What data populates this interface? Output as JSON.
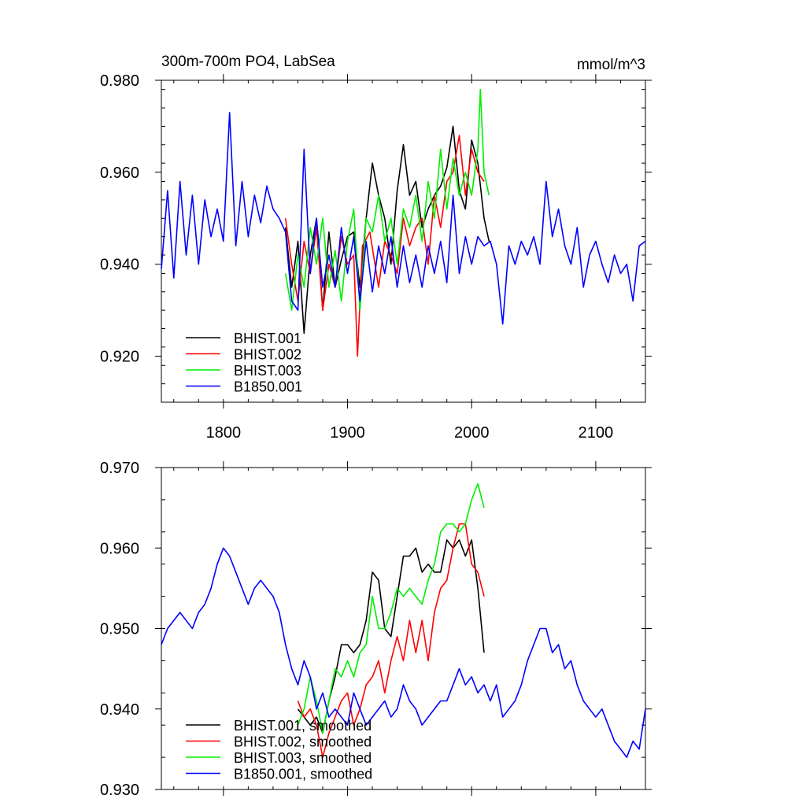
{
  "chart_data": [
    {
      "type": "line",
      "title": "300m-700m PO4, LabSea",
      "units": "mmol/m^3",
      "xlim": [
        1750,
        2140
      ],
      "ylim": [
        0.91,
        0.98
      ],
      "x_ticks": [
        1800,
        1900,
        2000,
        2100
      ],
      "x_tick_labels": [
        "1800",
        "1900",
        "2000",
        "2100"
      ],
      "y_ticks": [
        0.92,
        0.94,
        0.96,
        0.98
      ],
      "y_tick_labels": [
        "0.920",
        "0.940",
        "0.960",
        "0.980"
      ],
      "legend_position": "bottom-left",
      "series": [
        {
          "name": "BHIST.001",
          "color": "#000000",
          "x": [
            1850,
            1855,
            1860,
            1865,
            1870,
            1875,
            1880,
            1885,
            1890,
            1895,
            1900,
            1905,
            1910,
            1915,
            1920,
            1925,
            1930,
            1935,
            1940,
            1945,
            1950,
            1955,
            1960,
            1965,
            1970,
            1975,
            1980,
            1985,
            1990,
            1995,
            2000,
            2005,
            2010,
            2014
          ],
          "y": [
            0.948,
            0.935,
            0.945,
            0.925,
            0.942,
            0.95,
            0.93,
            0.947,
            0.935,
            0.941,
            0.946,
            0.947,
            0.935,
            0.95,
            0.962,
            0.955,
            0.95,
            0.94,
            0.956,
            0.966,
            0.955,
            0.958,
            0.948,
            0.952,
            0.955,
            0.957,
            0.961,
            0.97,
            0.956,
            0.952,
            0.967,
            0.962,
            0.95,
            0.945
          ]
        },
        {
          "name": "BHIST.002",
          "color": "#ff0000",
          "x": [
            1850,
            1855,
            1860,
            1865,
            1870,
            1875,
            1880,
            1885,
            1890,
            1895,
            1900,
            1905,
            1908,
            1912,
            1918,
            1925,
            1930,
            1935,
            1940,
            1945,
            1950,
            1955,
            1960,
            1965,
            1970,
            1975,
            1980,
            1985,
            1990,
            1995,
            2000,
            2005,
            2010
          ],
          "y": [
            0.95,
            0.94,
            0.932,
            0.945,
            0.938,
            0.948,
            0.93,
            0.94,
            0.935,
            0.946,
            0.94,
            0.942,
            0.92,
            0.944,
            0.947,
            0.935,
            0.945,
            0.942,
            0.938,
            0.95,
            0.944,
            0.948,
            0.95,
            0.94,
            0.955,
            0.948,
            0.958,
            0.96,
            0.968,
            0.955,
            0.965,
            0.96,
            0.958
          ]
        },
        {
          "name": "BHIST.003",
          "color": "#00ee00",
          "x": [
            1850,
            1855,
            1860,
            1865,
            1870,
            1875,
            1880,
            1885,
            1890,
            1895,
            1900,
            1905,
            1910,
            1915,
            1920,
            1925,
            1930,
            1935,
            1940,
            1945,
            1950,
            1955,
            1960,
            1965,
            1970,
            1975,
            1980,
            1985,
            1990,
            1995,
            2000,
            2005,
            2007,
            2010,
            2014
          ],
          "y": [
            0.938,
            0.93,
            0.942,
            0.935,
            0.948,
            0.94,
            0.95,
            0.935,
            0.943,
            0.932,
            0.945,
            0.952,
            0.93,
            0.95,
            0.947,
            0.955,
            0.945,
            0.95,
            0.94,
            0.952,
            0.948,
            0.955,
            0.945,
            0.958,
            0.95,
            0.965,
            0.952,
            0.963,
            0.955,
            0.96,
            0.955,
            0.965,
            0.978,
            0.96,
            0.955
          ]
        },
        {
          "name": "B1850.001",
          "color": "#0000ff",
          "x": [
            1750,
            1755,
            1760,
            1765,
            1770,
            1775,
            1780,
            1785,
            1790,
            1795,
            1800,
            1805,
            1810,
            1815,
            1820,
            1825,
            1830,
            1835,
            1840,
            1845,
            1850,
            1855,
            1860,
            1865,
            1870,
            1875,
            1880,
            1885,
            1890,
            1895,
            1900,
            1905,
            1910,
            1915,
            1920,
            1925,
            1930,
            1935,
            1940,
            1945,
            1950,
            1955,
            1960,
            1965,
            1970,
            1975,
            1980,
            1985,
            1990,
            1995,
            2000,
            2005,
            2010,
            2015,
            2020,
            2025,
            2030,
            2035,
            2040,
            2045,
            2050,
            2055,
            2060,
            2065,
            2070,
            2075,
            2080,
            2085,
            2090,
            2095,
            2100,
            2105,
            2110,
            2115,
            2120,
            2125,
            2130,
            2135,
            2140
          ],
          "y": [
            0.939,
            0.956,
            0.937,
            0.958,
            0.942,
            0.955,
            0.94,
            0.954,
            0.946,
            0.952,
            0.945,
            0.973,
            0.944,
            0.958,
            0.946,
            0.955,
            0.949,
            0.957,
            0.952,
            0.95,
            0.947,
            0.932,
            0.93,
            0.965,
            0.938,
            0.95,
            0.935,
            0.942,
            0.935,
            0.948,
            0.938,
            0.946,
            0.932,
            0.945,
            0.934,
            0.944,
            0.938,
            0.946,
            0.935,
            0.944,
            0.936,
            0.942,
            0.935,
            0.944,
            0.938,
            0.945,
            0.936,
            0.955,
            0.938,
            0.946,
            0.94,
            0.946,
            0.944,
            0.945,
            0.94,
            0.927,
            0.944,
            0.94,
            0.945,
            0.942,
            0.946,
            0.94,
            0.958,
            0.946,
            0.952,
            0.944,
            0.94,
            0.948,
            0.935,
            0.942,
            0.945,
            0.94,
            0.936,
            0.942,
            0.938,
            0.94,
            0.932,
            0.944,
            0.945
          ]
        }
      ]
    },
    {
      "type": "line",
      "title": "",
      "xlim": [
        1750,
        2140
      ],
      "ylim": [
        0.93,
        0.97
      ],
      "x_ticks": [
        1800,
        1900,
        2000,
        2100
      ],
      "y_ticks": [
        0.93,
        0.94,
        0.95,
        0.96,
        0.97
      ],
      "y_tick_labels": [
        "0.930",
        "0.940",
        "0.950",
        "0.960",
        "0.970"
      ],
      "legend_position": "bottom-left",
      "series": [
        {
          "name": "BHIST.001, smoothed",
          "color": "#000000",
          "x": [
            1860,
            1865,
            1870,
            1875,
            1880,
            1885,
            1890,
            1895,
            1900,
            1905,
            1910,
            1915,
            1920,
            1925,
            1930,
            1935,
            1940,
            1945,
            1950,
            1955,
            1960,
            1965,
            1970,
            1975,
            1980,
            1985,
            1990,
            1995,
            2000,
            2005,
            2010
          ],
          "y": [
            0.94,
            0.939,
            0.938,
            0.939,
            0.937,
            0.941,
            0.944,
            0.948,
            0.948,
            0.947,
            0.948,
            0.951,
            0.957,
            0.956,
            0.95,
            0.949,
            0.954,
            0.959,
            0.959,
            0.96,
            0.957,
            0.958,
            0.957,
            0.957,
            0.961,
            0.96,
            0.961,
            0.959,
            0.961,
            0.955,
            0.947
          ]
        },
        {
          "name": "BHIST.002, smoothed",
          "color": "#ff0000",
          "x": [
            1860,
            1865,
            1870,
            1875,
            1880,
            1885,
            1890,
            1895,
            1900,
            1905,
            1910,
            1915,
            1920,
            1925,
            1930,
            1935,
            1940,
            1945,
            1950,
            1955,
            1960,
            1965,
            1970,
            1975,
            1980,
            1985,
            1990,
            1995,
            2000,
            2005,
            2010
          ],
          "y": [
            0.941,
            0.939,
            0.94,
            0.938,
            0.934,
            0.937,
            0.939,
            0.941,
            0.942,
            0.938,
            0.94,
            0.943,
            0.944,
            0.946,
            0.942,
            0.946,
            0.949,
            0.946,
            0.951,
            0.947,
            0.951,
            0.946,
            0.952,
            0.955,
            0.956,
            0.96,
            0.963,
            0.963,
            0.958,
            0.957,
            0.954
          ]
        },
        {
          "name": "BHIST.003, smoothed",
          "color": "#00ee00",
          "x": [
            1860,
            1865,
            1870,
            1875,
            1880,
            1885,
            1890,
            1895,
            1900,
            1905,
            1910,
            1915,
            1920,
            1925,
            1930,
            1935,
            1940,
            1945,
            1950,
            1955,
            1960,
            1965,
            1970,
            1975,
            1980,
            1985,
            1990,
            1995,
            2000,
            2005,
            2010
          ],
          "y": [
            0.938,
            0.94,
            0.944,
            0.941,
            0.937,
            0.941,
            0.945,
            0.944,
            0.946,
            0.944,
            0.947,
            0.948,
            0.954,
            0.95,
            0.95,
            0.952,
            0.955,
            0.954,
            0.955,
            0.954,
            0.953,
            0.956,
            0.958,
            0.962,
            0.963,
            0.963,
            0.962,
            0.963,
            0.966,
            0.968,
            0.965
          ]
        },
        {
          "name": "B1850.001, smoothed",
          "color": "#0000ff",
          "x": [
            1750,
            1755,
            1760,
            1765,
            1770,
            1775,
            1780,
            1785,
            1790,
            1795,
            1800,
            1805,
            1810,
            1815,
            1820,
            1825,
            1830,
            1835,
            1840,
            1845,
            1850,
            1855,
            1860,
            1865,
            1870,
            1875,
            1880,
            1885,
            1890,
            1895,
            1900,
            1905,
            1910,
            1915,
            1920,
            1925,
            1930,
            1935,
            1940,
            1945,
            1950,
            1955,
            1960,
            1965,
            1970,
            1975,
            1980,
            1985,
            1990,
            1995,
            2000,
            2005,
            2010,
            2015,
            2020,
            2025,
            2030,
            2035,
            2040,
            2045,
            2050,
            2055,
            2060,
            2065,
            2070,
            2075,
            2080,
            2085,
            2090,
            2095,
            2100,
            2105,
            2110,
            2115,
            2120,
            2125,
            2130,
            2135,
            2140
          ],
          "y": [
            0.948,
            0.95,
            0.951,
            0.952,
            0.951,
            0.95,
            0.952,
            0.953,
            0.955,
            0.958,
            0.96,
            0.959,
            0.957,
            0.955,
            0.953,
            0.955,
            0.956,
            0.955,
            0.954,
            0.952,
            0.948,
            0.945,
            0.943,
            0.946,
            0.944,
            0.94,
            0.942,
            0.939,
            0.94,
            0.939,
            0.938,
            0.942,
            0.94,
            0.938,
            0.939,
            0.94,
            0.941,
            0.939,
            0.94,
            0.943,
            0.941,
            0.94,
            0.938,
            0.939,
            0.94,
            0.941,
            0.941,
            0.943,
            0.945,
            0.943,
            0.944,
            0.942,
            0.943,
            0.941,
            0.943,
            0.939,
            0.94,
            0.941,
            0.943,
            0.946,
            0.948,
            0.95,
            0.95,
            0.947,
            0.948,
            0.945,
            0.946,
            0.943,
            0.941,
            0.94,
            0.939,
            0.94,
            0.938,
            0.936,
            0.935,
            0.934,
            0.936,
            0.935,
            0.94
          ]
        }
      ]
    }
  ]
}
